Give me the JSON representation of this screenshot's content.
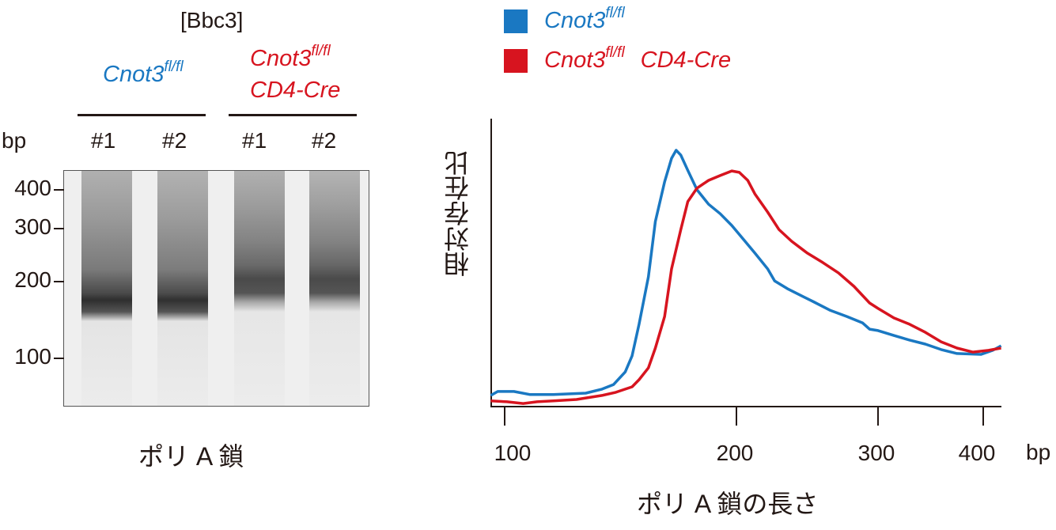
{
  "gel": {
    "title": "[Bbc3]",
    "groups": [
      {
        "label": "Cnot3",
        "sup": "fl/fl",
        "line2": "",
        "color": "#1a78c2"
      },
      {
        "label": "Cnot3",
        "sup": "fl/fl",
        "line2": "CD4-Cre",
        "color": "#d7141f"
      }
    ],
    "unit": "bp",
    "lanes": [
      "#1",
      "#2",
      "#1",
      "#2"
    ],
    "markers": [
      "400",
      "300",
      "200",
      "100"
    ],
    "caption": "ポリ A 鎖"
  },
  "legend": [
    {
      "label": "Cnot3",
      "sup": "fl/fl",
      "suffix": "",
      "color": "#1a78c2"
    },
    {
      "label": "Cnot3",
      "sup": "fl/fl",
      "suffix": "CD4-Cre",
      "color": "#d7141f"
    }
  ],
  "chart_data": {
    "type": "line",
    "title": "",
    "xlabel": "ポリ A 鎖の長さ",
    "ylabel": "相対存在比",
    "x_unit": "bp",
    "x_scale": "log",
    "xlim": [
      94,
      417
    ],
    "ylim": [
      0,
      100
    ],
    "x_ticks": [
      100,
      200,
      300,
      400
    ],
    "x_tick_labels": [
      "100",
      "200",
      "300",
      "400"
    ],
    "grid": false,
    "legend_position": "top",
    "series": [
      {
        "name": "Cnot3 fl/fl",
        "color": "#1a78c2",
        "x": [
          94,
          97,
          104,
          111,
          121,
          135,
          142,
          147,
          152,
          155,
          158,
          162,
          165,
          169,
          172,
          174,
          176,
          179,
          183,
          188,
          193,
          198,
          205,
          213,
          222,
          227,
          236,
          244,
          255,
          266,
          278,
          289,
          294,
          300,
          315,
          330,
          345,
          360,
          375,
          398,
          409,
          417
        ],
        "y": [
          3.6,
          5,
          5,
          3.9,
          3.9,
          4.4,
          5.8,
          7.4,
          11.8,
          17.4,
          28.4,
          44.9,
          64.2,
          78,
          86.2,
          89,
          87.3,
          82,
          75.2,
          70.2,
          66.9,
          62.8,
          57.9,
          53.2,
          47.7,
          43.5,
          40.8,
          38.8,
          36.1,
          33.3,
          31.1,
          28.9,
          26.7,
          26.2,
          24.5,
          22.9,
          21.5,
          19.6,
          18.2,
          17.9,
          19.3,
          20.9
        ]
      },
      {
        "name": "Cnot3 fl/fl CD4-Cre",
        "color": "#d7141f",
        "x": [
          94,
          101,
          108,
          114,
          121,
          131,
          142,
          148,
          155,
          158,
          162,
          165,
          169,
          172,
          176,
          179,
          183,
          188,
          193,
          198,
          202,
          208,
          213,
          222,
          230,
          239,
          250,
          261,
          272,
          283,
          294,
          300,
          315,
          330,
          345,
          360,
          375,
          390,
          405,
          417
        ],
        "y": [
          1.7,
          1.4,
          0.8,
          1.4,
          1.7,
          2.2,
          3.6,
          4.7,
          6.6,
          9.1,
          13.2,
          20.1,
          31.1,
          47.7,
          61.4,
          71.1,
          75.8,
          78.5,
          80.2,
          81.8,
          81.3,
          78.5,
          73.8,
          67.5,
          61.4,
          57.3,
          53.2,
          49.9,
          46.3,
          41.6,
          35.8,
          33.9,
          30.6,
          28.4,
          25.6,
          22.3,
          20.1,
          18.7,
          19.3,
          20.1
        ]
      }
    ]
  }
}
